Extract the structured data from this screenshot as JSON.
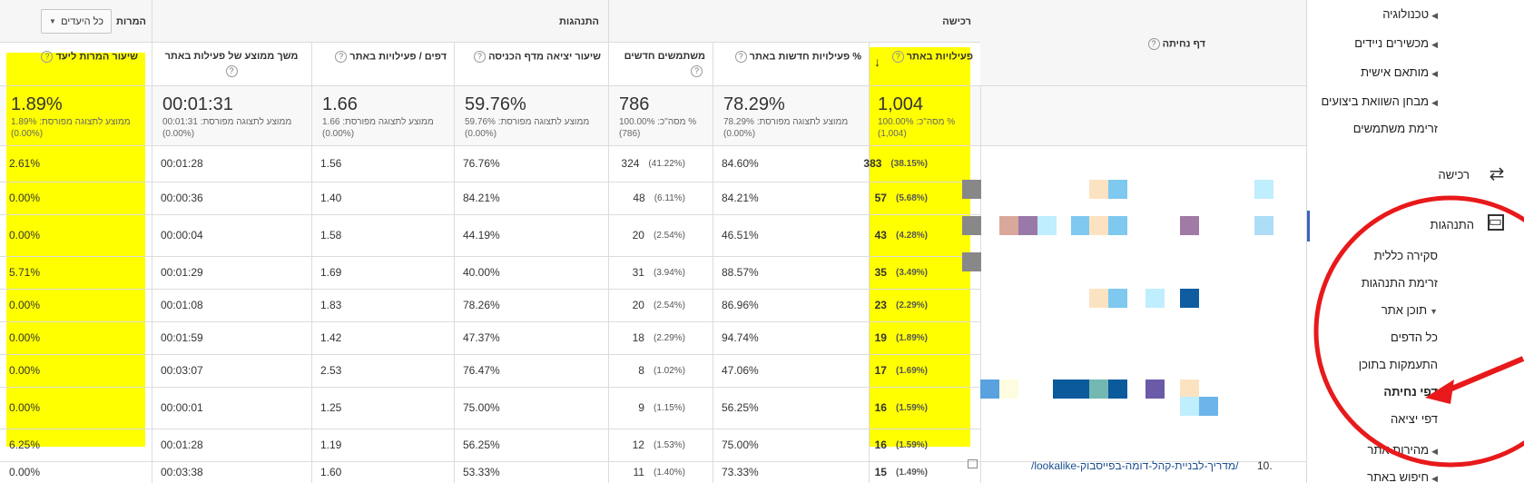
{
  "sidebar": {
    "items": [
      {
        "label": "טכנולוגיה",
        "arrow": "◀",
        "bold": false
      },
      {
        "label": "מכשירים ניידים",
        "arrow": "◀",
        "bold": false
      },
      {
        "label": "מותאם אישית",
        "arrow": "◀",
        "bold": false
      },
      {
        "label": "מבחן השוואת ביצועים",
        "arrow": "◀",
        "bold": false
      },
      {
        "label": "זרימת משתמשים",
        "arrow": "",
        "bold": false
      }
    ],
    "acquisition_label": "רכישה",
    "behavior_label": "התנהגות",
    "behavior_items": [
      {
        "label": "סקירה כללית",
        "arrow": "",
        "bold": false
      },
      {
        "label": "זרימת התנהגות",
        "arrow": "",
        "bold": false
      },
      {
        "label": "תוכן אתר",
        "arrow": "▼",
        "bold": false
      },
      {
        "label": "כל הדפים",
        "arrow": "",
        "bold": false
      },
      {
        "label": "התעמקות בתוכן",
        "arrow": "",
        "bold": false
      },
      {
        "label": "דפי נחיתה",
        "arrow": "",
        "bold": true
      },
      {
        "label": "דפי יציאה",
        "arrow": "",
        "bold": false
      },
      {
        "label": "מהירות אתר",
        "arrow": "◀",
        "bold": false
      },
      {
        "label": "חיפוש באתר",
        "arrow": "◀",
        "bold": false
      }
    ]
  },
  "table": {
    "landing_page_header": "דף נחיתה",
    "group_acquisition": "רכישה",
    "group_behavior": "התנהגות",
    "group_conversions": "המרות",
    "goal_dropdown": "כל היעדים",
    "columns": {
      "sessions": "פעילויות באתר",
      "new_sessions_pct": "% פעילויות חדשות באתר",
      "new_users": "משתמשים חדשים",
      "bounce_rate": "שיעור יציאה מדף הכניסה",
      "pages_per_session": "דפים / פעילויות באתר",
      "avg_duration": "משך ממוצע של פעילות באתר",
      "goal_conversion": "שיעור המרות ליעד"
    },
    "summary": {
      "sessions": {
        "value": "1,004",
        "sub1": "% מסה\"כ: 100.00%",
        "sub2": "(1,004)"
      },
      "new_sessions_pct": {
        "value": "78.29%",
        "sub1": "ממוצע לתצוגה מפורסת: 78.29%",
        "sub2": "(0.00%)"
      },
      "new_users": {
        "value": "786",
        "sub1": "% מסה\"כ: 100.00%",
        "sub2": "(786)"
      },
      "bounce_rate": {
        "value": "59.76%",
        "sub1": "ממוצע לתצוגה מפורסת: 59.76%",
        "sub2": "(0.00%)"
      },
      "pages_per_session": {
        "value": "1.66",
        "sub1": "ממוצע לתצוגה מפורסת: 1.66",
        "sub2": "(0.00%)"
      },
      "avg_duration": {
        "value": "00:01:31",
        "sub1": "ממוצע לתצוגה מפורסת: 00:01:31",
        "sub2": "(0.00%)"
      },
      "goal_conversion": {
        "value": "1.89%",
        "sub1": "ממוצע לתצוגה מפורסת: 1.89%",
        "sub2": "(0.00%)"
      }
    },
    "rows": [
      {
        "sessions": "383",
        "sessions_pct": "(38.15%)",
        "new_pct": "84.60%",
        "new_users": "324",
        "new_users_pct": "(41.22%)",
        "bounce": "76.76%",
        "pages": "1.56",
        "duration": "00:01:28",
        "conv": "2.61%"
      },
      {
        "sessions": "57",
        "sessions_pct": "(5.68%)",
        "new_pct": "84.21%",
        "new_users": "48",
        "new_users_pct": "(6.11%)",
        "bounce": "84.21%",
        "pages": "1.40",
        "duration": "00:00:36",
        "conv": "0.00%"
      },
      {
        "sessions": "43",
        "sessions_pct": "(4.28%)",
        "new_pct": "46.51%",
        "new_users": "20",
        "new_users_pct": "(2.54%)",
        "bounce": "44.19%",
        "pages": "1.58",
        "duration": "00:00:04",
        "conv": "0.00%"
      },
      {
        "sessions": "35",
        "sessions_pct": "(3.49%)",
        "new_pct": "88.57%",
        "new_users": "31",
        "new_users_pct": "(3.94%)",
        "bounce": "40.00%",
        "pages": "1.69",
        "duration": "00:01:29",
        "conv": "5.71%"
      },
      {
        "sessions": "23",
        "sessions_pct": "(2.29%)",
        "new_pct": "86.96%",
        "new_users": "20",
        "new_users_pct": "(2.54%)",
        "bounce": "78.26%",
        "pages": "1.83",
        "duration": "00:01:08",
        "conv": "0.00%"
      },
      {
        "sessions": "19",
        "sessions_pct": "(1.89%)",
        "new_pct": "94.74%",
        "new_users": "18",
        "new_users_pct": "(2.29%)",
        "bounce": "47.37%",
        "pages": "1.42",
        "duration": "00:01:59",
        "conv": "0.00%"
      },
      {
        "sessions": "17",
        "sessions_pct": "(1.69%)",
        "new_pct": "47.06%",
        "new_users": "8",
        "new_users_pct": "(1.02%)",
        "bounce": "76.47%",
        "pages": "2.53",
        "duration": "00:03:07",
        "conv": "0.00%"
      },
      {
        "sessions": "16",
        "sessions_pct": "(1.59%)",
        "new_pct": "56.25%",
        "new_users": "9",
        "new_users_pct": "(1.15%)",
        "bounce": "75.00%",
        "pages": "1.25",
        "duration": "00:00:01",
        "conv": "0.00%"
      },
      {
        "sessions": "16",
        "sessions_pct": "(1.59%)",
        "new_pct": "75.00%",
        "new_users": "12",
        "new_users_pct": "(1.53%)",
        "bounce": "56.25%",
        "pages": "1.19",
        "duration": "00:01:28",
        "conv": "6.25%"
      },
      {
        "sessions": "15",
        "sessions_pct": "(1.49%)",
        "new_pct": "73.33%",
        "new_users": "11",
        "new_users_pct": "(1.40%)",
        "bounce": "53.33%",
        "pages": "1.60",
        "duration": "00:03:38",
        "conv": "0.00%"
      }
    ],
    "last_row_index": "10.",
    "last_row_link": "/lookalike-מדריך-לבניית-קהל-דומה-בפייסבוק/",
    "help_glyph": "?",
    "sort_glyph": "↓"
  },
  "colors": {
    "highlight": "#ffff00",
    "annotation": "#e8191b",
    "link": "#1a4d8f"
  }
}
